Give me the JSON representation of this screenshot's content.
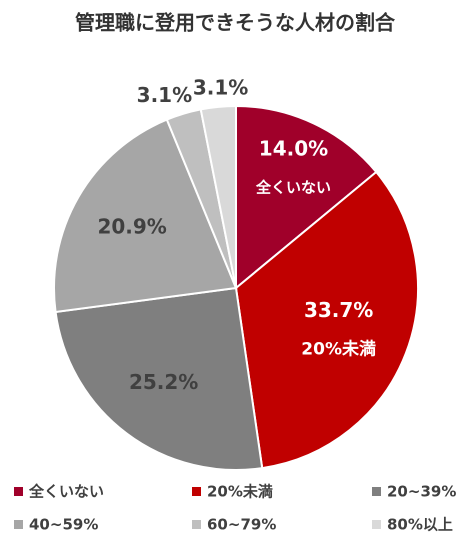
{
  "chart_data": {
    "type": "pie",
    "title": "管理職に登用できそうな人材の割合",
    "categories": [
      "全くいない",
      "20%未満",
      "20~39%",
      "40~59%",
      "60~79%",
      "80%以上"
    ],
    "values": [
      14.0,
      33.7,
      25.2,
      20.9,
      3.1,
      3.1
    ],
    "value_labels": [
      "14.0%",
      "33.7%",
      "25.2%",
      "20.9%",
      "3.1%",
      "3.1%"
    ],
    "colors": [
      "#a0002a",
      "#c00000",
      "#7f7f7f",
      "#a6a6a6",
      "#bfbfbf",
      "#d9d9d9"
    ]
  }
}
